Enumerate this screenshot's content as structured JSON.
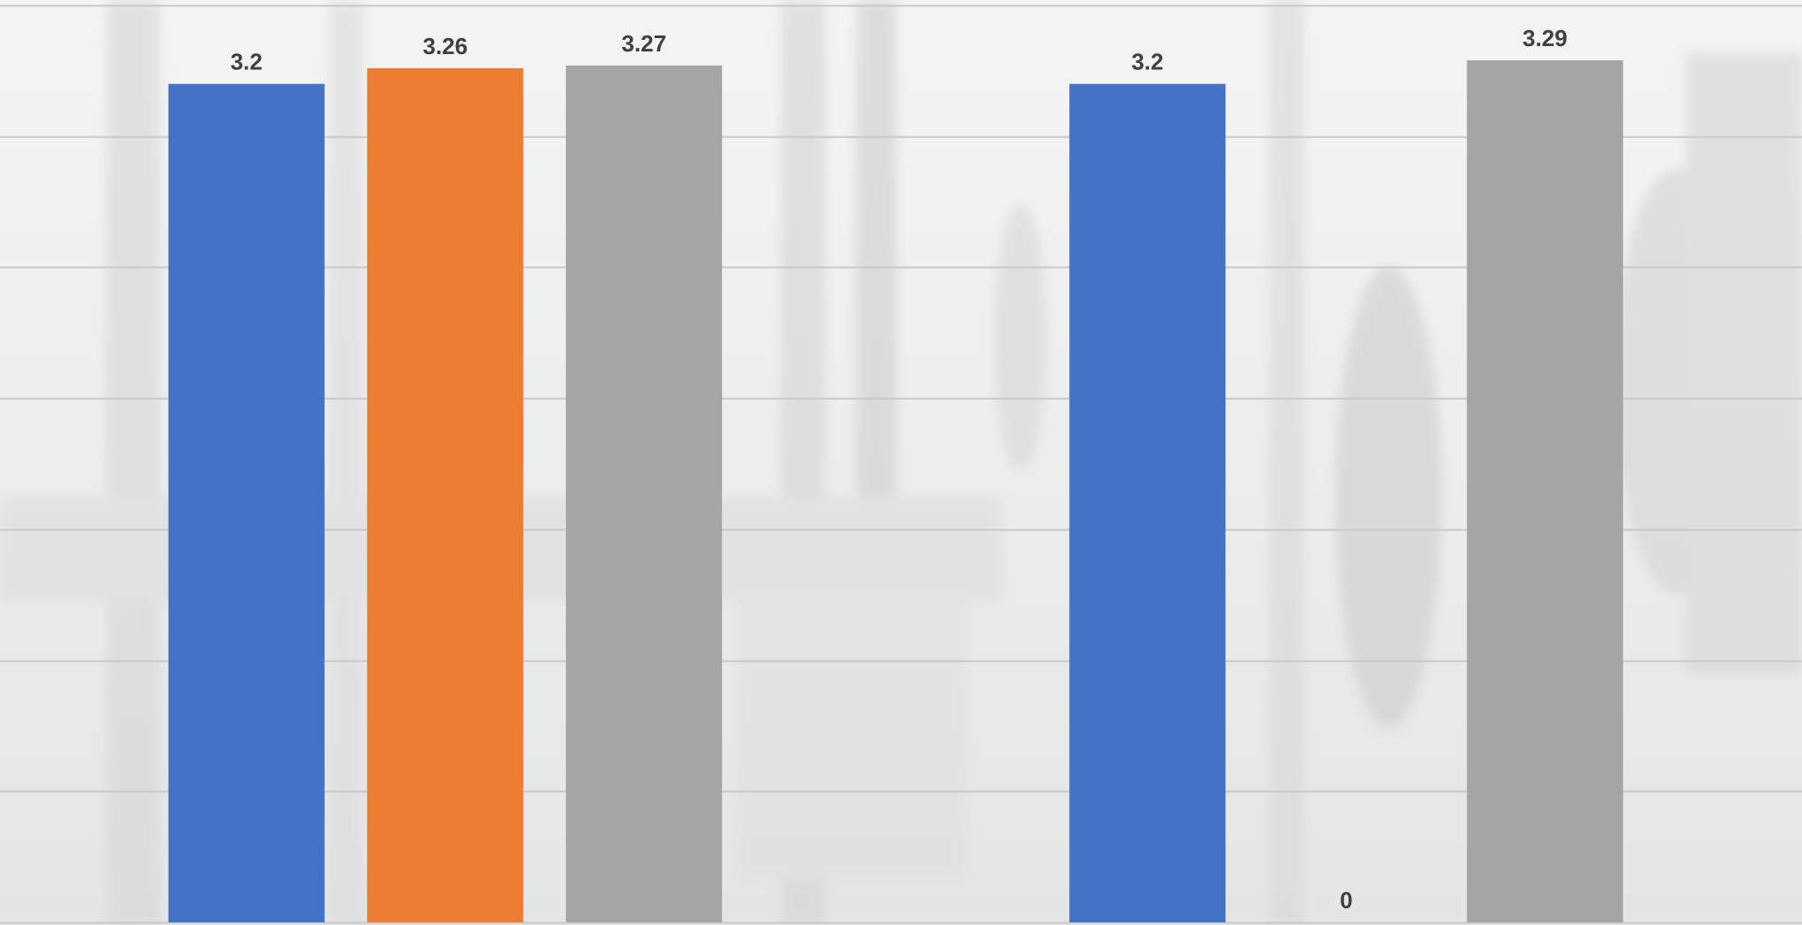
{
  "chart_data": {
    "type": "bar",
    "title": "",
    "xlabel": "",
    "ylabel": "",
    "ylim": [
      0,
      3.5
    ],
    "grid": true,
    "legend": "none",
    "colors": [
      "#4472C4",
      "#ED7D31",
      "#A5A5A5"
    ],
    "groups": [
      {
        "bars": [
          {
            "value": 3.2,
            "label": "3.2",
            "color": "#4472C4"
          },
          {
            "value": 3.26,
            "label": "3.26",
            "color": "#ED7D31"
          },
          {
            "value": 3.27,
            "label": "3.27",
            "color": "#A5A5A5"
          }
        ]
      },
      {
        "bars": [
          {
            "value": 3.2,
            "label": "3.2",
            "color": "#4472C4"
          },
          {
            "value": 0,
            "label": "0",
            "color": "#ED7D31"
          },
          {
            "value": 3.29,
            "label": "3.29",
            "color": "#A5A5A5"
          }
        ]
      }
    ]
  }
}
